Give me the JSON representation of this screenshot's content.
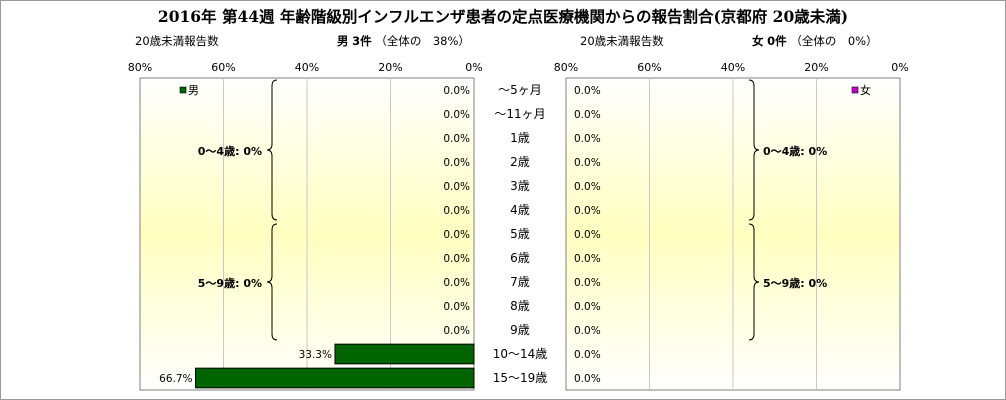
{
  "title": "2016年 第44週 年齢階級別インフルエンザ患者の定点医療機関からの報告割合(京都府 20歳未満)",
  "male_header": {
    "caption": "20歳未満報告数",
    "sex": "男",
    "count": "3件",
    "share": "（全体の　38%）"
  },
  "female_header": {
    "caption": "20歳未満報告数",
    "sex": "女",
    "count": "0件",
    "share": "（全体の　0%）"
  },
  "chart_data": {
    "type": "bar",
    "categories": [
      "～5ヶ月",
      "～11ヶ月",
      "1歳",
      "2歳",
      "3歳",
      "4歳",
      "5歳",
      "6歳",
      "7歳",
      "8歳",
      "9歳",
      "10～14歳",
      "15～19歳"
    ],
    "series": [
      {
        "name": "男",
        "color": "#006400",
        "values": [
          0,
          0,
          0,
          0,
          0,
          0,
          0,
          0,
          0,
          0,
          0,
          33.3,
          66.7
        ],
        "labels": [
          "0.0%",
          "0.0%",
          "0.0%",
          "0.0%",
          "0.0%",
          "0.0%",
          "0.0%",
          "0.0%",
          "0.0%",
          "0.0%",
          "0.0%",
          "33.3%",
          "66.7%"
        ]
      },
      {
        "name": "女",
        "color": "#cc00cc",
        "values": [
          0,
          0,
          0,
          0,
          0,
          0,
          0,
          0,
          0,
          0,
          0,
          0,
          0
        ],
        "labels": [
          "0.0%",
          "0.0%",
          "0.0%",
          "0.0%",
          "0.0%",
          "0.0%",
          "0.0%",
          "0.0%",
          "0.0%",
          "0.0%",
          "0.0%",
          "0.0%",
          "0.0%"
        ]
      }
    ],
    "xlim": [
      0,
      80
    ],
    "ticks": [
      80,
      60,
      40,
      20,
      0
    ],
    "tick_labels_male": [
      "80%",
      "60%",
      "40%",
      "20%",
      "0%"
    ],
    "tick_labels_female": [
      "0%",
      "20%",
      "40%",
      "60%",
      "80%"
    ],
    "groups": [
      {
        "label": "0～4歳: 0%",
        "from": 0,
        "to": 5
      },
      {
        "label": "5～9歳: 0%",
        "from": 6,
        "to": 10
      }
    ],
    "grid": true
  }
}
